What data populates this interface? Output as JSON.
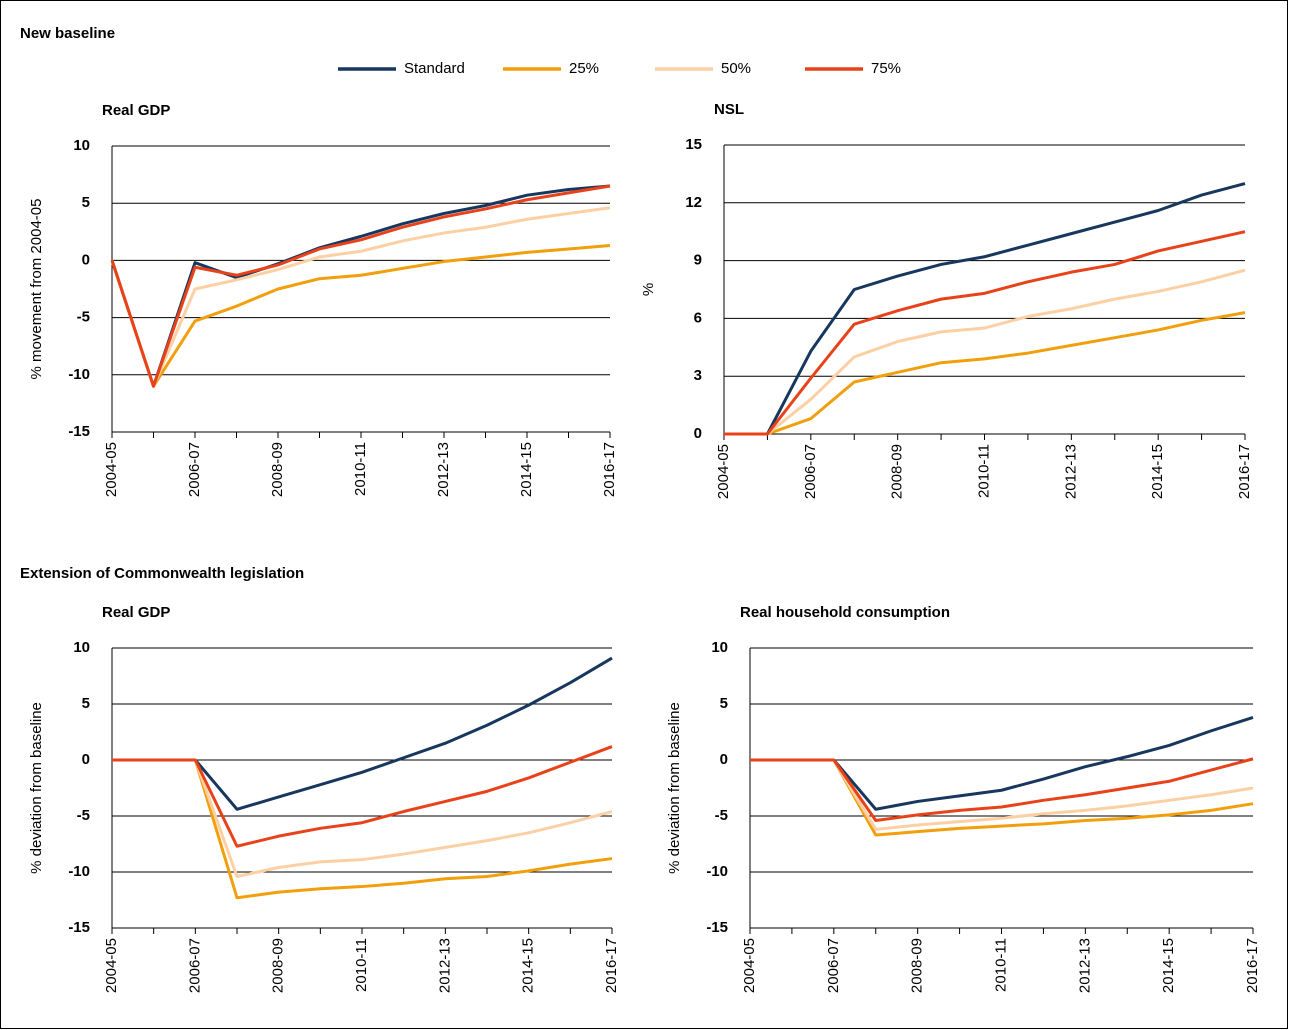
{
  "headings": [
    "New baseline",
    "Extension of Commonwealth legislation"
  ],
  "legend": {
    "series": [
      {
        "name": "Standard",
        "color": "#17375e"
      },
      {
        "name": "25%",
        "color": "#f29f0d"
      },
      {
        "name": "50%",
        "color": "#fcd0a4"
      },
      {
        "name": "75%",
        "color": "#e8421a"
      }
    ]
  },
  "chart_data": [
    {
      "type": "line",
      "title": "Real GDP",
      "ylabel": "% movement from 2004-05",
      "categories": [
        "2004-05",
        null,
        "2006-07",
        null,
        "2008-09",
        null,
        "2010-11",
        null,
        "2012-13",
        null,
        "2014-15",
        null,
        "2016-17"
      ],
      "series": [
        {
          "values": [
            0,
            -11,
            -0.2,
            -1.5,
            -0.3,
            1.1,
            2.1,
            3.2,
            4.1,
            4.8,
            5.7,
            6.2,
            6.5
          ]
        },
        {
          "values": [
            0,
            -11,
            -5.3,
            -4,
            -2.5,
            -1.6,
            -1.3,
            -0.7,
            -0.1,
            0.3,
            0.7,
            1.0,
            1.3
          ]
        },
        {
          "values": [
            0,
            -11,
            -2.5,
            -1.7,
            -0.8,
            0.3,
            0.8,
            1.7,
            2.4,
            2.9,
            3.6,
            4.1,
            4.6
          ]
        },
        {
          "values": [
            0,
            -11,
            -0.6,
            -1.3,
            -0.4,
            1.0,
            1.8,
            2.9,
            3.8,
            4.5,
            5.3,
            5.9,
            6.5
          ]
        }
      ],
      "ylim": [
        -15,
        10
      ],
      "yticks": [
        -15,
        -10,
        -5,
        0,
        5,
        10
      ],
      "grid": true
    },
    {
      "type": "line",
      "title": "NSL",
      "ylabel": "%",
      "categories": [
        "2004-05",
        null,
        "2006-07",
        null,
        "2008-09",
        null,
        "2010-11",
        null,
        "2012-13",
        null,
        "2014-15",
        null,
        "2016-17"
      ],
      "series": [
        {
          "values": [
            0,
            0,
            4.3,
            7.5,
            8.2,
            8.8,
            9.2,
            9.8,
            10.4,
            11.0,
            11.6,
            12.4,
            13.0
          ]
        },
        {
          "values": [
            0,
            0,
            0.8,
            2.7,
            3.2,
            3.7,
            3.9,
            4.2,
            4.6,
            5.0,
            5.4,
            5.9,
            6.3
          ]
        },
        {
          "values": [
            0,
            0,
            1.8,
            4.0,
            4.8,
            5.3,
            5.5,
            6.1,
            6.5,
            7.0,
            7.4,
            7.9,
            8.5
          ]
        },
        {
          "values": [
            0,
            0,
            2.9,
            5.7,
            6.4,
            7.0,
            7.3,
            7.9,
            8.4,
            8.8,
            9.5,
            10.0,
            10.5
          ]
        }
      ],
      "ylim": [
        0,
        15
      ],
      "yticks": [
        0,
        3,
        6,
        9,
        12,
        15
      ],
      "grid": true
    },
    {
      "type": "line",
      "title": "Real GDP",
      "ylabel": "% deviation from baseline",
      "categories": [
        "2004-05",
        null,
        "2006-07",
        null,
        "2008-09",
        null,
        "2010-11",
        null,
        "2012-13",
        null,
        "2014-15",
        null,
        "2016-17"
      ],
      "series": [
        {
          "values": [
            0,
            0,
            0,
            -4.4,
            -3.3,
            -2.2,
            -1.1,
            0.2,
            1.5,
            3.1,
            4.9,
            6.9,
            9.1
          ]
        },
        {
          "values": [
            0,
            0,
            0,
            -12.3,
            -11.8,
            -11.5,
            -11.3,
            -11.0,
            -10.6,
            -10.4,
            -9.9,
            -9.3,
            -8.8
          ]
        },
        {
          "values": [
            0,
            0,
            0,
            -10.4,
            -9.6,
            -9.1,
            -8.9,
            -8.4,
            -7.8,
            -7.2,
            -6.5,
            -5.6,
            -4.6
          ]
        },
        {
          "values": [
            0,
            0,
            0,
            -7.7,
            -6.8,
            -6.1,
            -5.6,
            -4.6,
            -3.7,
            -2.8,
            -1.6,
            -0.2,
            1.2
          ]
        }
      ],
      "ylim": [
        -15,
        10
      ],
      "yticks": [
        -15,
        -10,
        -5,
        0,
        5,
        10
      ],
      "grid": true
    },
    {
      "type": "line",
      "title": "Real household consumption",
      "ylabel": "% deviation from baseline",
      "categories": [
        "2004-05",
        null,
        "2006-07",
        null,
        "2008-09",
        null,
        "2010-11",
        null,
        "2012-13",
        null,
        "2014-15",
        null,
        "2016-17"
      ],
      "series": [
        {
          "values": [
            0,
            0,
            0,
            -4.4,
            -3.7,
            -3.2,
            -2.7,
            -1.7,
            -0.6,
            0.3,
            1.3,
            2.6,
            3.8
          ]
        },
        {
          "values": [
            0,
            0,
            0,
            -6.7,
            -6.4,
            -6.1,
            -5.9,
            -5.7,
            -5.4,
            -5.2,
            -4.9,
            -4.5,
            -3.9
          ]
        },
        {
          "values": [
            0,
            0,
            0,
            -6.2,
            -5.8,
            -5.5,
            -5.2,
            -4.8,
            -4.5,
            -4.1,
            -3.6,
            -3.1,
            -2.5
          ]
        },
        {
          "values": [
            0,
            0,
            0,
            -5.4,
            -4.9,
            -4.5,
            -4.2,
            -3.6,
            -3.1,
            -2.5,
            -1.9,
            -0.9,
            0.1
          ]
        }
      ],
      "ylim": [
        -15,
        10
      ],
      "yticks": [
        -15,
        -10,
        -5,
        0,
        5,
        10
      ],
      "grid": true
    }
  ]
}
